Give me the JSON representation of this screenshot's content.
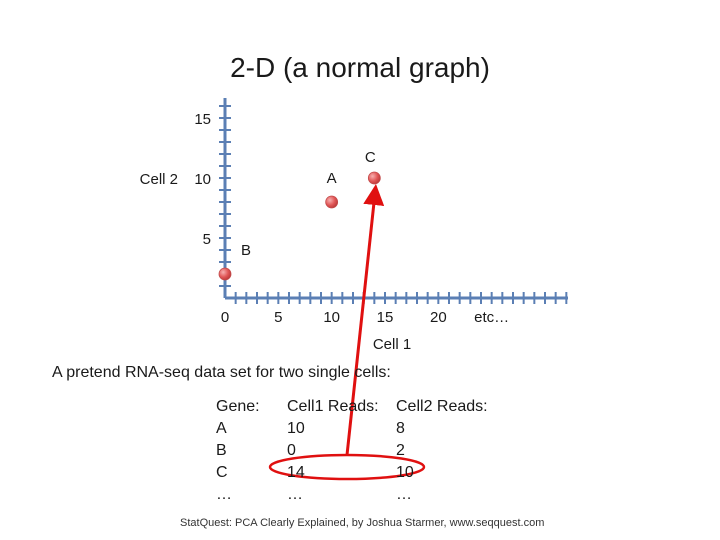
{
  "slide": {
    "title": "2-D (a normal graph)",
    "subheading": "A pretend RNA-seq data set for two single cells:",
    "footer": "StatQuest: PCA Clearly Explained, by Joshua Starmer, www.seqquest.com"
  },
  "table": {
    "headers": [
      "Gene:",
      "Cell1 Reads:",
      "Cell2 Reads:"
    ],
    "rows": [
      [
        "A",
        "10",
        "8"
      ],
      [
        "B",
        "0",
        "2"
      ],
      [
        "C",
        "14",
        "10"
      ],
      [
        "…",
        "…",
        "…"
      ]
    ]
  },
  "colors": {
    "axis": "#5b7fb4",
    "point": "#e05555",
    "highlight": "#e01010"
  },
  "chart_data": {
    "type": "scatter",
    "title": "2-D (a normal graph)",
    "xlabel": "Cell 1",
    "ylabel": "Cell 2",
    "x_ticks": [
      "0",
      "5",
      "10",
      "15",
      "20",
      "etc…"
    ],
    "y_ticks": [
      "5",
      "10",
      "15"
    ],
    "xlim": [
      0,
      27
    ],
    "ylim": [
      0,
      16
    ],
    "grid": false,
    "points": [
      {
        "label": "A",
        "x": 10,
        "y": 8
      },
      {
        "label": "B",
        "x": 0,
        "y": 2
      },
      {
        "label": "C",
        "x": 14,
        "y": 10
      }
    ],
    "annotations": [
      "Arrow from Gene C reads (14, 10) in table to point C"
    ]
  }
}
